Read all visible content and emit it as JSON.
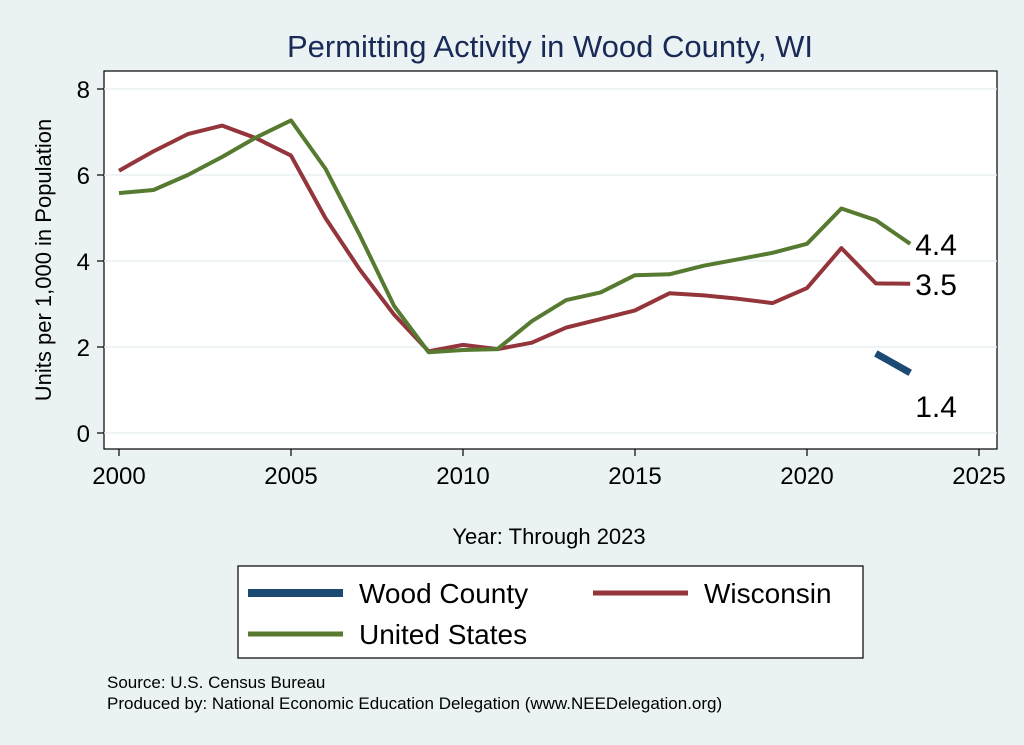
{
  "chart_data": {
    "type": "line",
    "title": "Permitting Activity in Wood County, WI",
    "xlabel": "Year: Through 2023",
    "ylabel": "Units per 1,000 in Population",
    "xlim": [
      2000,
      2025
    ],
    "ylim": [
      0,
      8
    ],
    "x_ticks": [
      "2000",
      "2005",
      "2010",
      "2015",
      "2020",
      "2025"
    ],
    "y_ticks": [
      "0",
      "2",
      "4",
      "6",
      "8"
    ],
    "grid": true,
    "legend_position": "bottom",
    "series": [
      {
        "name": "Wood County",
        "color": "#1b4a72",
        "x": [
          2022,
          2023
        ],
        "values": [
          1.85,
          1.4
        ],
        "end_label": "1.4"
      },
      {
        "name": "Wisconsin",
        "color": "#93353a",
        "x": [
          2000,
          2001,
          2002,
          2003,
          2004,
          2005,
          2006,
          2007,
          2008,
          2009,
          2010,
          2011,
          2012,
          2013,
          2014,
          2015,
          2016,
          2017,
          2018,
          2019,
          2020,
          2021,
          2022,
          2023
        ],
        "values": [
          6.1,
          6.55,
          6.95,
          7.15,
          6.85,
          6.45,
          5.0,
          3.8,
          2.75,
          1.9,
          2.05,
          1.95,
          2.1,
          2.45,
          2.65,
          2.85,
          3.25,
          3.2,
          3.12,
          3.02,
          3.37,
          4.3,
          3.48,
          3.47
        ],
        "end_label": "3.5"
      },
      {
        "name": "United States",
        "color": "#557a30",
        "x": [
          2000,
          2001,
          2002,
          2003,
          2004,
          2005,
          2006,
          2007,
          2008,
          2009,
          2010,
          2011,
          2012,
          2013,
          2014,
          2015,
          2016,
          2017,
          2018,
          2019,
          2020,
          2021,
          2022,
          2023
        ],
        "values": [
          5.58,
          5.65,
          6.0,
          6.42,
          6.88,
          7.27,
          6.15,
          4.6,
          2.95,
          1.88,
          1.93,
          1.95,
          2.6,
          3.09,
          3.27,
          3.67,
          3.69,
          3.89,
          4.04,
          4.19,
          4.4,
          5.22,
          4.95,
          4.4
        ],
        "end_label": "4.4"
      }
    ],
    "legend_order": [
      0,
      1,
      2
    ]
  },
  "notes": {
    "source": "Source: U.S. Census Bureau",
    "produced_by": "Produced by: National Economic Education Delegation (www.NEEDelegation.org)"
  }
}
